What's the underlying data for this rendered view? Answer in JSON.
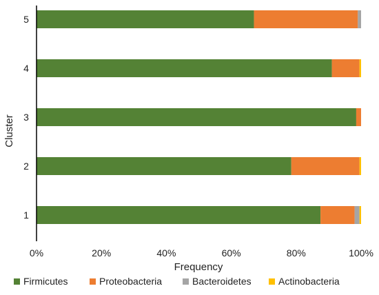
{
  "chart_data": {
    "type": "bar",
    "orientation": "horizontal",
    "stacked": true,
    "categories": [
      "1",
      "2",
      "3",
      "4",
      "5"
    ],
    "series": [
      {
        "name": "Firmicutes",
        "color": "#548235",
        "values": [
          87.5,
          78.5,
          98.5,
          91.0,
          67.0
        ]
      },
      {
        "name": "Proteobacteria",
        "color": "#ED7D31",
        "values": [
          10.5,
          21.0,
          1.5,
          8.5,
          32.0
        ]
      },
      {
        "name": "Bacteroidetes",
        "color": "#A5A5A5",
        "values": [
          1.5,
          0.0,
          0.0,
          0.0,
          1.0
        ]
      },
      {
        "name": "Actinobacteria",
        "color": "#FFC000",
        "values": [
          0.5,
          0.5,
          0.0,
          0.5,
          0.0
        ]
      }
    ],
    "x_ticks": [
      "0%",
      "20%",
      "40%",
      "60%",
      "80%",
      "100%"
    ],
    "xlabel": "Frequency",
    "ylabel": "Cluster",
    "xlim": [
      0,
      100
    ],
    "grid": false,
    "legend_position": "bottom"
  }
}
